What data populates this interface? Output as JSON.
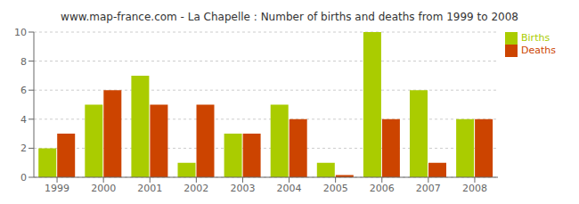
{
  "chart_data": {
    "type": "bar",
    "title": "www.map-france.com - La Chapelle : Number of births and deaths from 1999 to 2008",
    "categories": [
      "1999",
      "2000",
      "2001",
      "2002",
      "2003",
      "2004",
      "2005",
      "2006",
      "2007",
      "2008"
    ],
    "series": [
      {
        "name": "Births",
        "color": "#aacc00",
        "values": [
          2,
          5,
          7,
          1,
          3,
          5,
          1,
          10,
          6,
          4
        ]
      },
      {
        "name": "Deaths",
        "color": "#cc4400",
        "values": [
          3,
          6,
          5,
          5,
          3,
          4,
          0.15,
          4,
          1,
          4
        ]
      }
    ],
    "ylim": [
      0,
      10
    ],
    "yticks": [
      0,
      2,
      4,
      6,
      8,
      10
    ],
    "grid": true,
    "legend": "upper right"
  }
}
